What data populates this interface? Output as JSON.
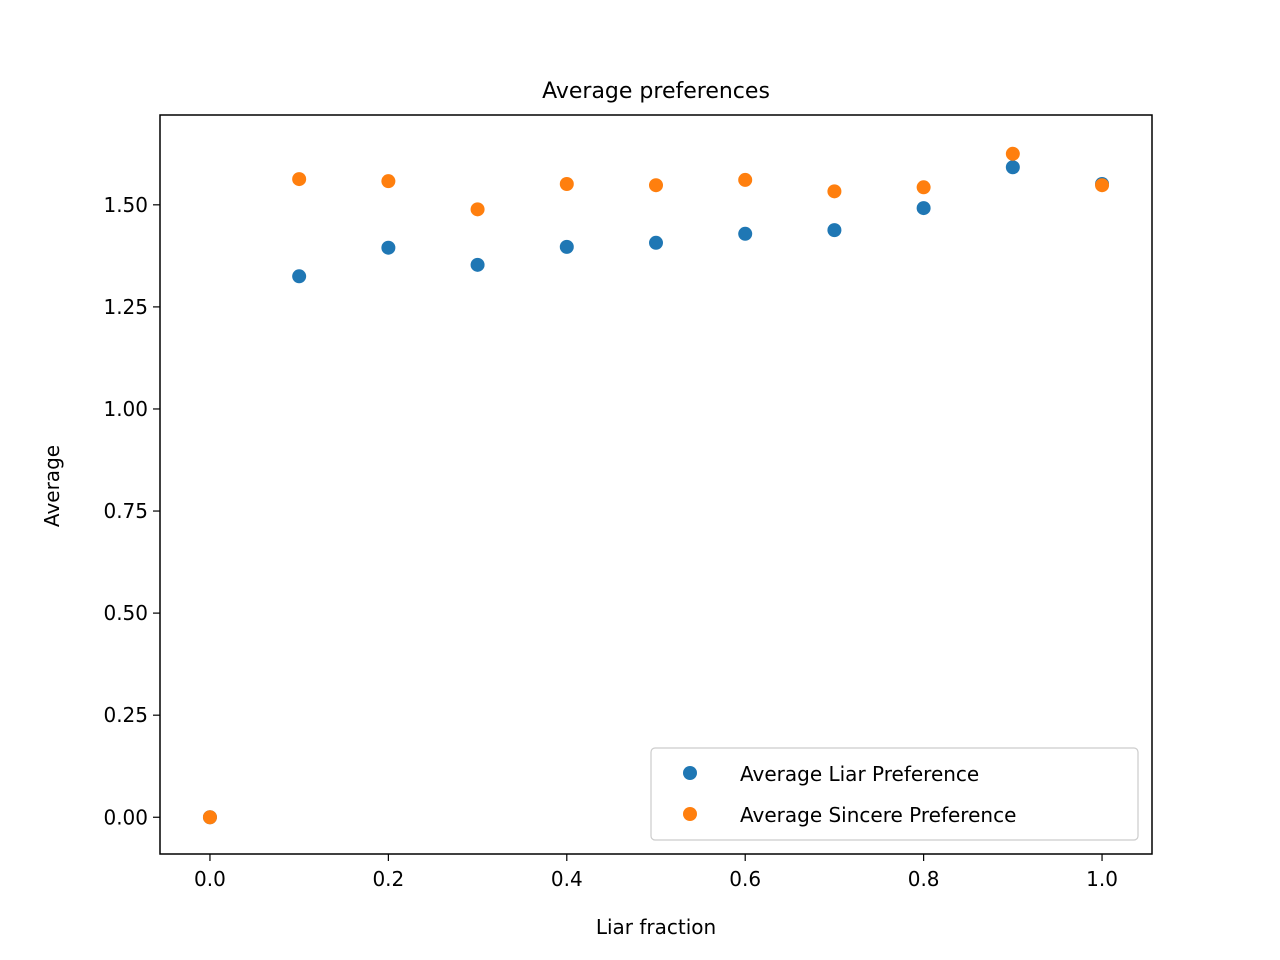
{
  "chart_data": {
    "type": "scatter",
    "title": "Average preferences",
    "xlabel": "Liar fraction",
    "ylabel": "Average",
    "xlim": [
      -0.056,
      1.056
    ],
    "ylim": [
      -0.09,
      1.72
    ],
    "xticks": [
      0.0,
      0.2,
      0.4,
      0.6,
      0.8,
      1.0
    ],
    "xtick_labels": [
      "0.0",
      "0.2",
      "0.4",
      "0.6",
      "0.8",
      "1.0"
    ],
    "yticks": [
      0.0,
      0.25,
      0.5,
      0.75,
      1.0,
      1.25,
      1.5
    ],
    "ytick_labels": [
      "0.00",
      "0.25",
      "0.50",
      "0.75",
      "1.00",
      "1.25",
      "1.50"
    ],
    "grid": false,
    "legend": "lower-right",
    "series": [
      {
        "name": "Average Liar Preference",
        "color": "#1f77b4",
        "x": [
          0.0,
          0.1,
          0.2,
          0.3,
          0.4,
          0.5,
          0.6,
          0.7,
          0.8,
          0.9,
          1.0
        ],
        "y": [
          0.0,
          1.325,
          1.395,
          1.353,
          1.397,
          1.407,
          1.429,
          1.438,
          1.492,
          1.592,
          1.551
        ]
      },
      {
        "name": "Average Sincere Preference",
        "color": "#ff7f0e",
        "x": [
          0.0,
          0.1,
          0.2,
          0.3,
          0.4,
          0.5,
          0.6,
          0.7,
          0.8,
          0.9,
          1.0
        ],
        "y": [
          0.0,
          1.563,
          1.558,
          1.489,
          1.551,
          1.548,
          1.561,
          1.533,
          1.543,
          1.625,
          1.548
        ]
      }
    ]
  }
}
